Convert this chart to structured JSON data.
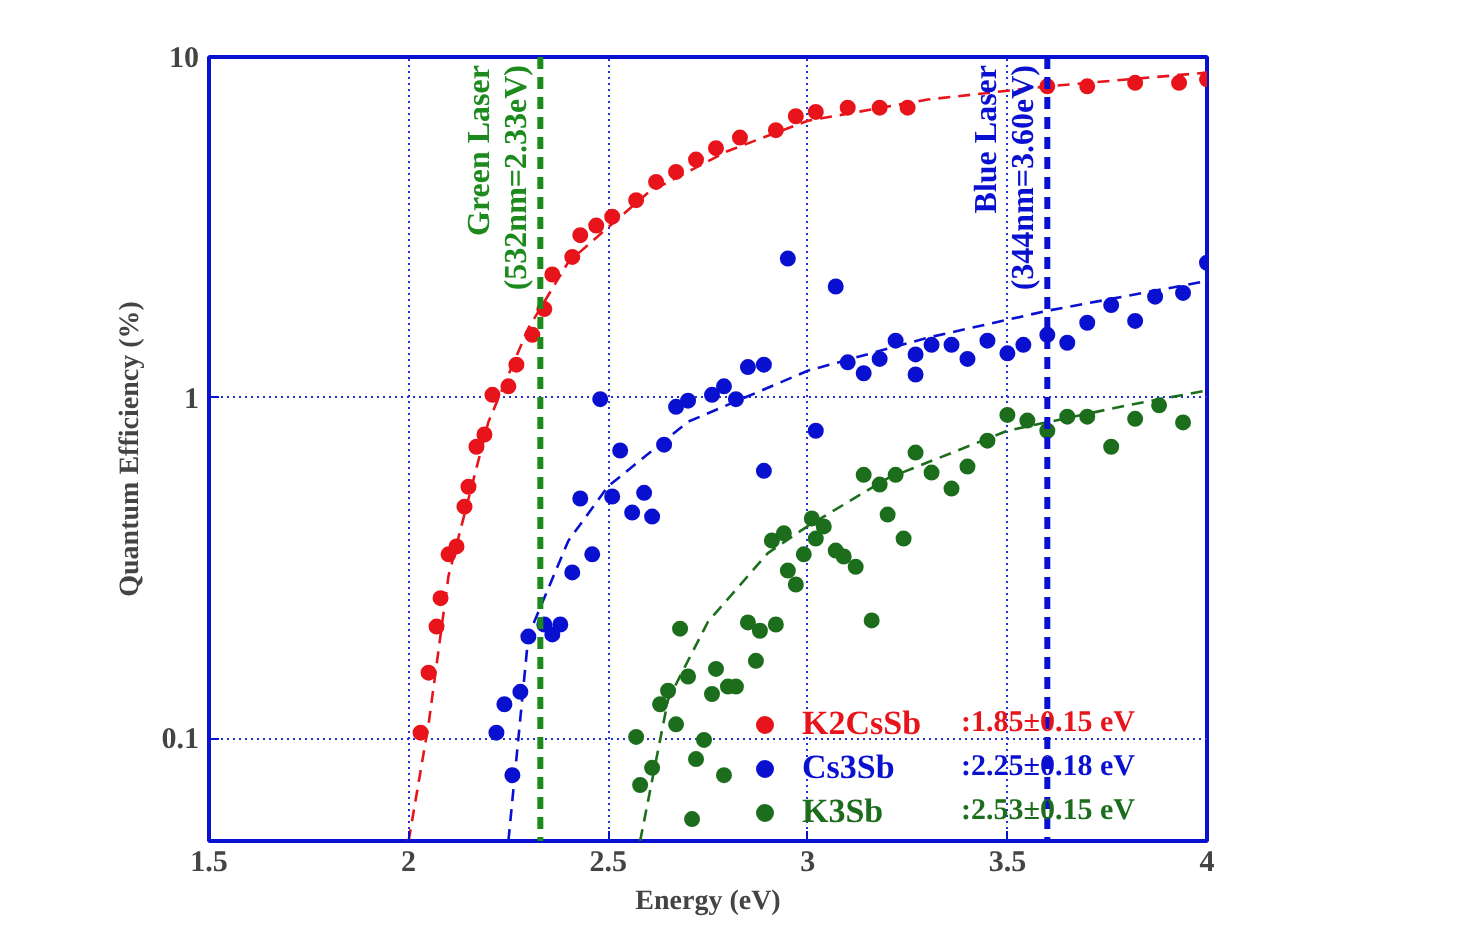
{
  "chart_data": {
    "type": "scatter",
    "xlabel": "Energy (eV)",
    "ylabel": "Quantum Efficiency (%)",
    "xlim": [
      1.5,
      4
    ],
    "ylim": [
      0.05,
      10
    ],
    "xticks": [
      1.5,
      2,
      2.5,
      3,
      3.5,
      4
    ],
    "yticks": [
      0.1,
      1,
      10
    ],
    "log": "y",
    "grid": true,
    "legend": "bottom right",
    "marker": "circle",
    "series": [
      {
        "name": "K2CsSb",
        "color": "#e8141b",
        "x": [
          2.03,
          2.05,
          2.07,
          2.08,
          2.1,
          2.12,
          2.14,
          2.15,
          2.17,
          2.19,
          2.21,
          2.25,
          2.27,
          2.31,
          2.34,
          2.36,
          2.41,
          2.43,
          2.47,
          2.51,
          2.57,
          2.62,
          2.67,
          2.72,
          2.77,
          2.83,
          2.92,
          2.97,
          3.02,
          3.1,
          3.18,
          3.25,
          3.6,
          3.7,
          3.82,
          3.93,
          4.0
        ],
        "values": [
          0.104,
          0.156,
          0.213,
          0.258,
          0.347,
          0.366,
          0.479,
          0.548,
          0.718,
          0.78,
          1.02,
          1.08,
          1.25,
          1.53,
          1.82,
          2.3,
          2.59,
          3.0,
          3.2,
          3.4,
          3.8,
          4.3,
          4.6,
          5.0,
          5.4,
          5.8,
          6.1,
          6.7,
          6.9,
          7.1,
          7.1,
          7.1,
          8.2,
          8.2,
          8.4,
          8.4,
          8.6
        ]
      },
      {
        "name": "Cs3Sb",
        "color": "#0a10d0",
        "x": [
          2.22,
          2.24,
          2.26,
          2.28,
          2.3,
          2.34,
          2.36,
          2.38,
          2.41,
          2.43,
          2.46,
          2.48,
          2.51,
          2.53,
          2.56,
          2.59,
          2.61,
          2.64,
          2.67,
          2.7,
          2.76,
          2.79,
          2.82,
          2.85,
          2.89,
          2.89,
          2.95,
          3.02,
          3.07,
          3.1,
          3.14,
          3.18,
          3.22,
          3.27,
          3.27,
          3.31,
          3.36,
          3.4,
          3.45,
          3.5,
          3.54,
          3.6,
          3.65,
          3.7,
          3.76,
          3.82,
          3.87,
          3.94,
          4.0
        ],
        "values": [
          0.104,
          0.126,
          0.078,
          0.137,
          0.199,
          0.216,
          0.202,
          0.216,
          0.307,
          0.506,
          0.347,
          0.99,
          0.513,
          0.7,
          0.46,
          0.526,
          0.448,
          0.728,
          0.94,
          0.98,
          1.02,
          1.08,
          0.99,
          1.23,
          0.61,
          1.25,
          2.56,
          0.8,
          2.12,
          1.27,
          1.18,
          1.3,
          1.47,
          1.34,
          1.17,
          1.43,
          1.43,
          1.3,
          1.47,
          1.35,
          1.43,
          1.53,
          1.45,
          1.66,
          1.87,
          1.68,
          1.98,
          2.03,
          2.49
        ]
      },
      {
        "name": "K3Sb",
        "color": "#1c6e1c",
        "x": [
          2.57,
          2.58,
          2.61,
          2.63,
          2.65,
          2.67,
          2.68,
          2.7,
          2.71,
          2.72,
          2.74,
          2.76,
          2.77,
          2.79,
          2.8,
          2.82,
          2.85,
          2.87,
          2.88,
          2.91,
          2.92,
          2.94,
          2.95,
          2.97,
          2.99,
          3.01,
          3.02,
          3.04,
          3.07,
          3.09,
          3.12,
          3.14,
          3.16,
          3.18,
          3.2,
          3.22,
          3.24,
          3.27,
          3.31,
          3.36,
          3.4,
          3.45,
          3.5,
          3.55,
          3.6,
          3.65,
          3.7,
          3.76,
          3.82,
          3.88,
          3.94
        ],
        "values": [
          0.101,
          0.073,
          0.082,
          0.126,
          0.138,
          0.11,
          0.21,
          0.152,
          0.058,
          0.087,
          0.099,
          0.135,
          0.16,
          0.078,
          0.142,
          0.142,
          0.219,
          0.169,
          0.207,
          0.381,
          0.216,
          0.4,
          0.311,
          0.283,
          0.347,
          0.442,
          0.386,
          0.419,
          0.356,
          0.342,
          0.319,
          0.594,
          0.222,
          0.556,
          0.454,
          0.594,
          0.386,
          0.69,
          0.603,
          0.541,
          0.628,
          0.748,
          0.89,
          0.857,
          0.8,
          0.88,
          0.88,
          0.718,
          0.867,
          0.95,
          0.846
        ]
      },
      {
        "type": "line",
        "marker": "none",
        "line_style": "dashed",
        "color": "#e8141b",
        "x": [
          2.0,
          2.05,
          2.1,
          2.2,
          2.3,
          2.4,
          2.6,
          2.8,
          3.0,
          3.3,
          3.6,
          4.0
        ],
        "values": [
          0.05,
          0.11,
          0.3,
          0.85,
          1.6,
          2.5,
          4.0,
          5.3,
          6.5,
          7.5,
          8.2,
          9.0
        ]
      },
      {
        "type": "line",
        "marker": "none",
        "line_style": "dashed",
        "color": "#0a10d0",
        "x": [
          2.25,
          2.3,
          2.4,
          2.5,
          2.7,
          3.0,
          3.3,
          3.6,
          4.0
        ],
        "values": [
          0.05,
          0.2,
          0.38,
          0.55,
          0.85,
          1.2,
          1.5,
          1.8,
          2.2
        ]
      },
      {
        "type": "line",
        "marker": "none",
        "line_style": "dashed",
        "color": "#1c6e1c",
        "x": [
          2.58,
          2.65,
          2.75,
          2.9,
          3.0,
          3.2,
          3.5,
          3.8,
          4.0
        ],
        "values": [
          0.05,
          0.13,
          0.22,
          0.35,
          0.42,
          0.58,
          0.8,
          0.95,
          1.05
        ]
      }
    ],
    "ref_lines": [
      {
        "axis": "x",
        "value": 2.33,
        "label": "Green Laser\n(532nm=2.33eV)",
        "color": "#1c8a1c",
        "line_style": "dashed"
      },
      {
        "axis": "x",
        "value": 3.6,
        "label": "Blue Laser\n(344nm=3.60eV)",
        "color": "#0a10d0",
        "line_style": "dashed"
      }
    ],
    "annotations": [
      ":1.85±0.15 eV",
      ":2.25±0.18 eV",
      ":2.53±0.15 eV"
    ]
  }
}
